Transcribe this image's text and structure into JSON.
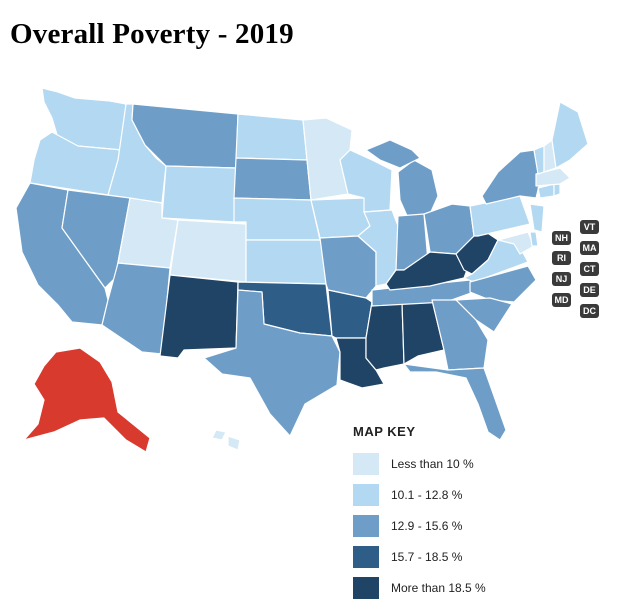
{
  "title": "Overall Poverty - 2019",
  "legend": {
    "title": "MAP KEY",
    "items": [
      {
        "label": "Less than 10 %",
        "color": "#d4e8f5"
      },
      {
        "label": "10.1 - 12.8 %",
        "color": "#b3d8f1"
      },
      {
        "label": "12.9 - 15.6 %",
        "color": "#6e9ec8"
      },
      {
        "label": "15.7 - 18.5 %",
        "color": "#2e5d87"
      },
      {
        "label": "More than 18.5 %",
        "color": "#1f4466"
      }
    ]
  },
  "highlight_color": "#d93a2e",
  "small_state_badges": [
    "VT",
    "NH",
    "MA",
    "RI",
    "CT",
    "NJ",
    "DE",
    "MD",
    "DC"
  ]
}
